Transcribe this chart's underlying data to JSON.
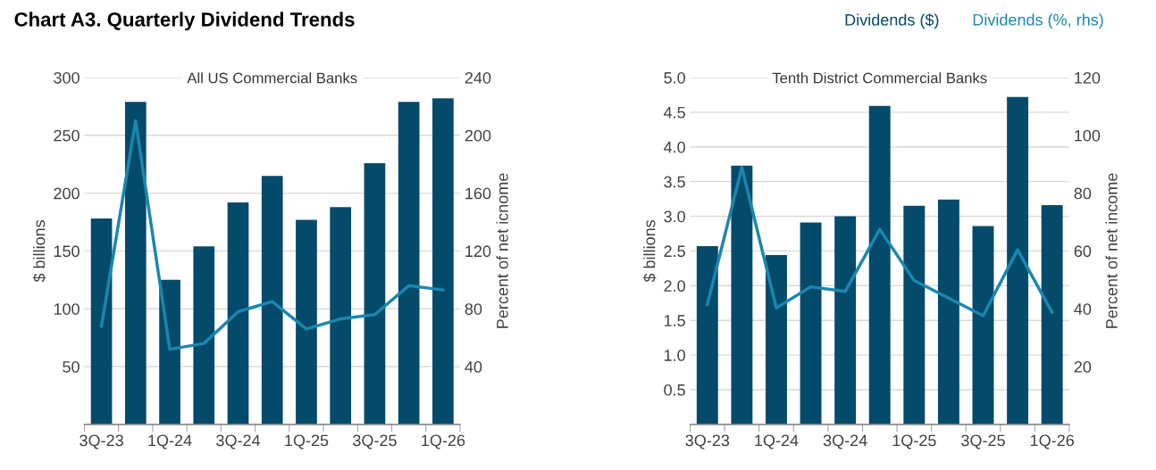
{
  "chart_data": [
    {
      "type": "bar",
      "title": "Chart A3. Quarterly Dividend Trends",
      "subtitle": "All US Commercial Banks",
      "ylabel": "$ billions",
      "y2label": "Percent of net icnome",
      "categories": [
        "3Q-23",
        null,
        "1Q-24",
        null,
        "3Q-24",
        null,
        "1Q-25",
        null,
        "3Q-25",
        null,
        "1Q-26"
      ],
      "series": [
        {
          "color": "#044a6b",
          "values": [
            178,
            279,
            125,
            154,
            192,
            215,
            177,
            188,
            226,
            279,
            282
          ]
        },
        {
          "type": "line",
          "axis": "y2",
          "color": "#1a87b0",
          "values": [
            68,
            210,
            52,
            56,
            78,
            85,
            66,
            73,
            76,
            96,
            93
          ]
        }
      ],
      "ylim": [
        0,
        300
      ],
      "yticks": [
        50,
        100,
        150,
        200,
        250,
        300
      ],
      "y2lim": [
        0,
        240
      ],
      "y2ticks": [
        40,
        80,
        120,
        160,
        200,
        240
      ],
      "grid": "y",
      "marker": "none",
      "line_style": "solid"
    },
    {
      "type": "bar",
      "subtitle": "Tenth District Commercial Banks",
      "ylabel": "$ billions",
      "y2label": "Percent of net income",
      "categories": [
        "3Q-23",
        null,
        "1Q-24",
        null,
        "3Q-24",
        null,
        "1Q-25",
        null,
        "3Q-25",
        null,
        "1Q-26"
      ],
      "series": [
        {
          "name": "Dividends ($)",
          "color": "#044a6b",
          "values": [
            2.57,
            3.73,
            2.44,
            2.91,
            3.0,
            4.59,
            3.15,
            3.24,
            2.86,
            4.72,
            3.16
          ]
        },
        {
          "type": "line",
          "axis": "y2",
          "name": "Dividends (%, rhs)",
          "color": "#1a87b0",
          "values": [
            41.5,
            88.9,
            40.3,
            47.6,
            46.0,
            67.5,
            49.8,
            43.7,
            37.6,
            60.4,
            38.8
          ]
        }
      ],
      "ylim": [
        0,
        5
      ],
      "yticks": [
        {
          "value": 0.5,
          "label": "0.5"
        },
        {
          "value": 1,
          "label": "1.0"
        },
        {
          "value": 1.5,
          "label": "1.5"
        },
        {
          "value": 2,
          "label": "2.0"
        },
        {
          "value": 2.5,
          "label": "2.5"
        },
        {
          "value": 3,
          "label": "3.0"
        },
        {
          "value": 3.5,
          "label": "3.5"
        },
        {
          "value": 4,
          "label": "4.0"
        },
        {
          "value": 4.5,
          "label": "4.5"
        },
        {
          "value": 5,
          "label": "5.0"
        }
      ],
      "y2lim": [
        0,
        120
      ],
      "y2ticks": [
        20,
        40,
        60,
        80,
        100,
        120
      ],
      "grid": "y",
      "legend": "top right",
      "marker": "none",
      "line_style": "solid"
    }
  ]
}
